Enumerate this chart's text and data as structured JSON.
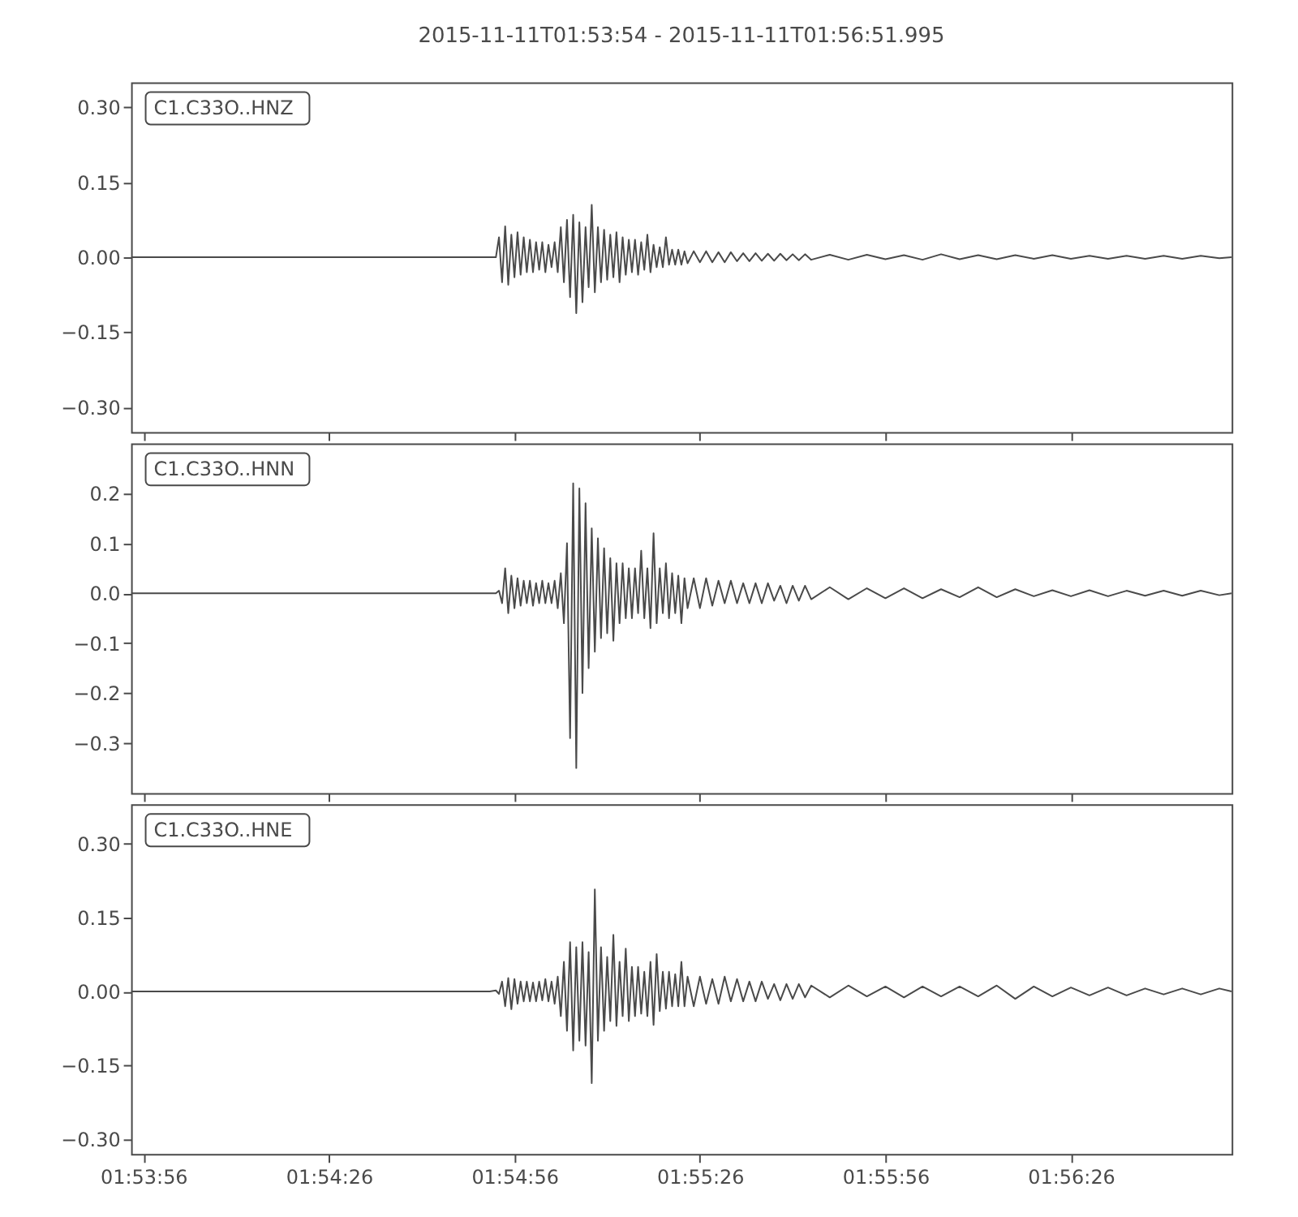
{
  "chart_data": [
    {
      "type": "line",
      "title": "2015-11-11T01:53:54  -  2015-11-11T01:56:51.995",
      "annotations": [
        "C1.C33O..HNZ"
      ],
      "color": "#4a4a4a",
      "tick_labels": "y",
      "xlim": [
        "2015-11-11T01:53:54",
        "2015-11-11T01:56:51.995"
      ],
      "xticks": [
        {
          "value": "2015-11-11T01:53:56",
          "label": null
        },
        {
          "value": "2015-11-11T01:54:26",
          "label": null
        },
        {
          "value": "2015-11-11T01:54:56",
          "label": null
        },
        {
          "value": "2015-11-11T01:55:26",
          "label": null
        },
        {
          "value": "2015-11-11T01:55:56",
          "label": null
        },
        {
          "value": "2015-11-11T01:56:26",
          "label": null
        }
      ],
      "ylim": [
        -0.35,
        0.35
      ],
      "yticks": [
        {
          "value": -0.3,
          "label": "−0.30"
        },
        {
          "value": -0.15,
          "label": "−0.15"
        },
        {
          "value": 0,
          "label": "0.00"
        },
        {
          "value": 0.15,
          "label": "0.15"
        },
        {
          "value": 0.3,
          "label": "0.30"
        }
      ],
      "x": [
        "2015-11-11T01:53:54",
        "2015-11-11T01:54:09",
        "2015-11-11T01:54:24",
        "2015-11-11T01:54:39",
        "2015-11-11T01:54:49",
        "2015-11-11T01:54:52",
        "2015-11-11T01:54:53",
        "2015-11-11T01:54:53.5",
        "2015-11-11T01:54:54",
        "2015-11-11T01:54:54.5",
        "2015-11-11T01:54:55",
        "2015-11-11T01:54:55.5",
        "2015-11-11T01:54:56",
        "2015-11-11T01:54:56.5",
        "2015-11-11T01:54:57",
        "2015-11-11T01:54:57.5",
        "2015-11-11T01:54:58",
        "2015-11-11T01:54:58.5",
        "2015-11-11T01:54:59",
        "2015-11-11T01:54:59.5",
        "2015-11-11T01:55:00",
        "2015-11-11T01:55:00.5",
        "2015-11-11T01:55:01",
        "2015-11-11T01:55:01.5",
        "2015-11-11T01:55:02",
        "2015-11-11T01:55:02.5",
        "2015-11-11T01:55:03",
        "2015-11-11T01:55:03.5",
        "2015-11-11T01:55:04",
        "2015-11-11T01:55:04.5",
        "2015-11-11T01:55:05",
        "2015-11-11T01:55:05.5",
        "2015-11-11T01:55:06",
        "2015-11-11T01:55:06.5",
        "2015-11-11T01:55:07",
        "2015-11-11T01:55:07.5",
        "2015-11-11T01:55:08",
        "2015-11-11T01:55:08.5",
        "2015-11-11T01:55:09",
        "2015-11-11T01:55:09.5",
        "2015-11-11T01:55:10",
        "2015-11-11T01:55:10.5",
        "2015-11-11T01:55:11",
        "2015-11-11T01:55:11.5",
        "2015-11-11T01:55:12",
        "2015-11-11T01:55:12.5",
        "2015-11-11T01:55:13",
        "2015-11-11T01:55:13.5",
        "2015-11-11T01:55:14",
        "2015-11-11T01:55:14.5",
        "2015-11-11T01:55:15",
        "2015-11-11T01:55:15.5",
        "2015-11-11T01:55:16",
        "2015-11-11T01:55:16.5",
        "2015-11-11T01:55:17",
        "2015-11-11T01:55:17.5",
        "2015-11-11T01:55:18",
        "2015-11-11T01:55:18.5",
        "2015-11-11T01:55:19",
        "2015-11-11T01:55:19.5",
        "2015-11-11T01:55:20",
        "2015-11-11T01:55:20.5",
        "2015-11-11T01:55:21",
        "2015-11-11T01:55:21.5",
        "2015-11-11T01:55:22",
        "2015-11-11T01:55:22.5",
        "2015-11-11T01:55:23",
        "2015-11-11T01:55:23.5",
        "2015-11-11T01:55:24",
        "2015-11-11T01:55:25",
        "2015-11-11T01:55:26",
        "2015-11-11T01:55:27",
        "2015-11-11T01:55:28",
        "2015-11-11T01:55:29",
        "2015-11-11T01:55:30",
        "2015-11-11T01:55:31",
        "2015-11-11T01:55:32",
        "2015-11-11T01:55:33",
        "2015-11-11T01:55:34",
        "2015-11-11T01:55:35",
        "2015-11-11T01:55:36",
        "2015-11-11T01:55:37",
        "2015-11-11T01:55:38",
        "2015-11-11T01:55:39",
        "2015-11-11T01:55:40",
        "2015-11-11T01:55:41",
        "2015-11-11T01:55:42",
        "2015-11-11T01:55:43",
        "2015-11-11T01:55:44",
        "2015-11-11T01:55:47",
        "2015-11-11T01:55:50",
        "2015-11-11T01:55:53",
        "2015-11-11T01:55:56",
        "2015-11-11T01:55:59",
        "2015-11-11T01:56:02",
        "2015-11-11T01:56:05",
        "2015-11-11T01:56:08",
        "2015-11-11T01:56:11",
        "2015-11-11T01:56:14",
        "2015-11-11T01:56:17",
        "2015-11-11T01:56:20",
        "2015-11-11T01:56:23",
        "2015-11-11T01:56:26",
        "2015-11-11T01:56:29",
        "2015-11-11T01:56:32",
        "2015-11-11T01:56:35",
        "2015-11-11T01:56:38",
        "2015-11-11T01:56:41",
        "2015-11-11T01:56:44",
        "2015-11-11T01:56:47",
        "2015-11-11T01:56:50",
        "2015-11-11T01:56:51.995"
      ],
      "values": [
        0,
        0,
        0,
        0,
        0,
        0,
        0.0,
        0.04,
        -0.05,
        0.062,
        -0.055,
        0.045,
        -0.04,
        0.05,
        -0.035,
        0.04,
        -0.03,
        0.035,
        -0.03,
        0.03,
        -0.025,
        0.03,
        -0.03,
        0.025,
        -0.02,
        0.03,
        -0.03,
        0.06,
        -0.05,
        0.075,
        -0.08,
        0.085,
        -0.112,
        0.07,
        -0.09,
        0.06,
        -0.06,
        0.105,
        -0.07,
        0.06,
        -0.05,
        0.055,
        -0.045,
        0.045,
        -0.04,
        0.05,
        -0.05,
        0.04,
        -0.035,
        0.035,
        -0.03,
        0.035,
        -0.035,
        0.03,
        -0.025,
        0.045,
        -0.03,
        0.025,
        -0.02,
        0.02,
        -0.02,
        0.04,
        -0.015,
        0.015,
        -0.015,
        0.015,
        -0.015,
        0.012,
        -0.012,
        0.012,
        -0.01,
        0.012,
        -0.01,
        0.01,
        -0.01,
        0.01,
        -0.008,
        0.008,
        -0.008,
        0.008,
        -0.007,
        0.007,
        -0.007,
        0.007,
        -0.006,
        0.006,
        -0.006,
        0.006,
        -0.005,
        0.005,
        -0.005,
        0.005,
        -0.004,
        0.004,
        -0.005,
        0.006,
        -0.004,
        0.004,
        -0.004,
        0.004,
        -0.003,
        0.004,
        -0.003,
        0.003,
        -0.003,
        0.003,
        -0.003,
        0.003,
        -0.003,
        0.003,
        -0.002,
        0
      ]
    },
    {
      "type": "line",
      "annotations": [
        "C1.C33O..HNN"
      ],
      "color": "#4a4a4a",
      "tick_labels": "y",
      "xlim": [
        "2015-11-11T01:53:54",
        "2015-11-11T01:56:51.995"
      ],
      "xticks": [
        {
          "value": "2015-11-11T01:53:56",
          "label": null
        },
        {
          "value": "2015-11-11T01:54:26",
          "label": null
        },
        {
          "value": "2015-11-11T01:54:56",
          "label": null
        },
        {
          "value": "2015-11-11T01:55:26",
          "label": null
        },
        {
          "value": "2015-11-11T01:55:56",
          "label": null
        },
        {
          "value": "2015-11-11T01:56:26",
          "label": null
        }
      ],
      "ylim": [
        -0.4,
        0.3
      ],
      "yticks": [
        {
          "value": -0.3,
          "label": "−0.3"
        },
        {
          "value": -0.2,
          "label": "−0.2"
        },
        {
          "value": -0.1,
          "label": "−0.1"
        },
        {
          "value": 0,
          "label": "0.0"
        },
        {
          "value": 0.1,
          "label": "0.1"
        },
        {
          "value": 0.2,
          "label": "0.2"
        }
      ],
      "x": [
        "2015-11-11T01:53:54",
        "2015-11-11T01:54:09",
        "2015-11-11T01:54:24",
        "2015-11-11T01:54:39",
        "2015-11-11T01:54:49",
        "2015-11-11T01:54:52",
        "2015-11-11T01:54:53",
        "2015-11-11T01:54:53.5",
        "2015-11-11T01:54:54",
        "2015-11-11T01:54:54.5",
        "2015-11-11T01:54:55",
        "2015-11-11T01:54:55.5",
        "2015-11-11T01:54:56",
        "2015-11-11T01:54:56.5",
        "2015-11-11T01:54:57",
        "2015-11-11T01:54:57.5",
        "2015-11-11T01:54:58",
        "2015-11-11T01:54:58.5",
        "2015-11-11T01:54:59",
        "2015-11-11T01:54:59.5",
        "2015-11-11T01:55:00",
        "2015-11-11T01:55:00.5",
        "2015-11-11T01:55:01",
        "2015-11-11T01:55:01.5",
        "2015-11-11T01:55:02",
        "2015-11-11T01:55:02.5",
        "2015-11-11T01:55:03",
        "2015-11-11T01:55:03.5",
        "2015-11-11T01:55:04",
        "2015-11-11T01:55:04.5",
        "2015-11-11T01:55:05",
        "2015-11-11T01:55:05.5",
        "2015-11-11T01:55:06",
        "2015-11-11T01:55:06.5",
        "2015-11-11T01:55:07",
        "2015-11-11T01:55:07.5",
        "2015-11-11T01:55:08",
        "2015-11-11T01:55:08.5",
        "2015-11-11T01:55:09",
        "2015-11-11T01:55:09.5",
        "2015-11-11T01:55:10",
        "2015-11-11T01:55:10.5",
        "2015-11-11T01:55:11",
        "2015-11-11T01:55:11.5",
        "2015-11-11T01:55:12",
        "2015-11-11T01:55:12.5",
        "2015-11-11T01:55:13",
        "2015-11-11T01:55:13.5",
        "2015-11-11T01:55:14",
        "2015-11-11T01:55:14.5",
        "2015-11-11T01:55:15",
        "2015-11-11T01:55:15.5",
        "2015-11-11T01:55:16",
        "2015-11-11T01:55:16.5",
        "2015-11-11T01:55:17",
        "2015-11-11T01:55:17.5",
        "2015-11-11T01:55:18",
        "2015-11-11T01:55:18.5",
        "2015-11-11T01:55:19",
        "2015-11-11T01:55:19.5",
        "2015-11-11T01:55:20",
        "2015-11-11T01:55:20.5",
        "2015-11-11T01:55:21",
        "2015-11-11T01:55:21.5",
        "2015-11-11T01:55:22",
        "2015-11-11T01:55:22.5",
        "2015-11-11T01:55:23",
        "2015-11-11T01:55:23.5",
        "2015-11-11T01:55:24",
        "2015-11-11T01:55:25",
        "2015-11-11T01:55:26",
        "2015-11-11T01:55:27",
        "2015-11-11T01:55:28",
        "2015-11-11T01:55:29",
        "2015-11-11T01:55:30",
        "2015-11-11T01:55:31",
        "2015-11-11T01:55:32",
        "2015-11-11T01:55:33",
        "2015-11-11T01:55:34",
        "2015-11-11T01:55:35",
        "2015-11-11T01:55:36",
        "2015-11-11T01:55:37",
        "2015-11-11T01:55:38",
        "2015-11-11T01:55:39",
        "2015-11-11T01:55:40",
        "2015-11-11T01:55:41",
        "2015-11-11T01:55:42",
        "2015-11-11T01:55:43",
        "2015-11-11T01:55:44",
        "2015-11-11T01:55:47",
        "2015-11-11T01:55:50",
        "2015-11-11T01:55:53",
        "2015-11-11T01:55:56",
        "2015-11-11T01:55:59",
        "2015-11-11T01:56:02",
        "2015-11-11T01:56:05",
        "2015-11-11T01:56:08",
        "2015-11-11T01:56:11",
        "2015-11-11T01:56:14",
        "2015-11-11T01:56:17",
        "2015-11-11T01:56:20",
        "2015-11-11T01:56:23",
        "2015-11-11T01:56:26",
        "2015-11-11T01:56:29",
        "2015-11-11T01:56:32",
        "2015-11-11T01:56:35",
        "2015-11-11T01:56:38",
        "2015-11-11T01:56:41",
        "2015-11-11T01:56:44",
        "2015-11-11T01:56:47",
        "2015-11-11T01:56:50",
        "2015-11-11T01:56:51.995"
      ],
      "values": [
        0,
        0,
        0,
        0,
        0,
        0,
        0.0,
        0.005,
        -0.02,
        0.05,
        -0.04,
        0.035,
        -0.03,
        0.03,
        -0.025,
        0.025,
        -0.02,
        0.025,
        -0.025,
        0.02,
        -0.02,
        0.025,
        -0.02,
        0.02,
        -0.02,
        0.025,
        -0.03,
        0.04,
        -0.06,
        0.1,
        -0.29,
        0.22,
        -0.35,
        0.21,
        -0.2,
        0.18,
        -0.15,
        0.13,
        -0.117,
        0.11,
        -0.09,
        0.09,
        -0.08,
        0.07,
        -0.095,
        0.06,
        -0.06,
        0.06,
        -0.05,
        0.05,
        -0.05,
        0.05,
        -0.04,
        0.085,
        -0.05,
        0.05,
        -0.07,
        0.12,
        -0.06,
        0.05,
        -0.04,
        0.06,
        -0.05,
        0.04,
        -0.04,
        0.035,
        -0.06,
        0.03,
        -0.03,
        0.03,
        -0.03,
        0.03,
        -0.025,
        0.025,
        -0.02,
        0.025,
        -0.02,
        0.02,
        -0.02,
        0.02,
        -0.02,
        0.02,
        -0.015,
        0.015,
        -0.02,
        0.015,
        -0.015,
        0.015,
        -0.012,
        0.012,
        -0.012,
        0.01,
        -0.01,
        0.01,
        -0.01,
        0.008,
        -0.008,
        0.012,
        -0.008,
        0.008,
        -0.006,
        0.006,
        -0.006,
        0.006,
        -0.006,
        0.005,
        -0.005,
        0.005,
        -0.005,
        0.005,
        -0.004,
        0
      ]
    },
    {
      "type": "line",
      "annotations": [
        "C1.C33O..HNE"
      ],
      "color": "#4a4a4a",
      "xlim": [
        "2015-11-11T01:53:54",
        "2015-11-11T01:56:51.995"
      ],
      "xticks": [
        {
          "value": "2015-11-11T01:53:56",
          "label": "01:53:56"
        },
        {
          "value": "2015-11-11T01:54:26",
          "label": "01:54:26"
        },
        {
          "value": "2015-11-11T01:54:56",
          "label": "01:54:56"
        },
        {
          "value": "2015-11-11T01:55:26",
          "label": "01:55:26"
        },
        {
          "value": "2015-11-11T01:55:56",
          "label": "01:55:56"
        },
        {
          "value": "2015-11-11T01:56:26",
          "label": "01:56:26"
        }
      ],
      "ylim": [
        -0.33,
        0.38
      ],
      "yticks": [
        {
          "value": -0.3,
          "label": "−0.30"
        },
        {
          "value": -0.15,
          "label": "−0.15"
        },
        {
          "value": 0,
          "label": "0.00"
        },
        {
          "value": 0.15,
          "label": "0.15"
        },
        {
          "value": 0.3,
          "label": "0.30"
        }
      ],
      "x": [
        "2015-11-11T01:53:54",
        "2015-11-11T01:54:09",
        "2015-11-11T01:54:24",
        "2015-11-11T01:54:39",
        "2015-11-11T01:54:49",
        "2015-11-11T01:54:52",
        "2015-11-11T01:54:53",
        "2015-11-11T01:54:53.5",
        "2015-11-11T01:54:54",
        "2015-11-11T01:54:54.5",
        "2015-11-11T01:54:55",
        "2015-11-11T01:54:55.5",
        "2015-11-11T01:54:56",
        "2015-11-11T01:54:56.5",
        "2015-11-11T01:54:57",
        "2015-11-11T01:54:57.5",
        "2015-11-11T01:54:58",
        "2015-11-11T01:54:58.5",
        "2015-11-11T01:54:59",
        "2015-11-11T01:54:59.5",
        "2015-11-11T01:55:00",
        "2015-11-11T01:55:00.5",
        "2015-11-11T01:55:01",
        "2015-11-11T01:55:01.5",
        "2015-11-11T01:55:02",
        "2015-11-11T01:55:02.5",
        "2015-11-11T01:55:03",
        "2015-11-11T01:55:03.5",
        "2015-11-11T01:55:04",
        "2015-11-11T01:55:04.5",
        "2015-11-11T01:55:05",
        "2015-11-11T01:55:05.5",
        "2015-11-11T01:55:06",
        "2015-11-11T01:55:06.5",
        "2015-11-11T01:55:07",
        "2015-11-11T01:55:07.5",
        "2015-11-11T01:55:08",
        "2015-11-11T01:55:08.5",
        "2015-11-11T01:55:09",
        "2015-11-11T01:55:09.5",
        "2015-11-11T01:55:10",
        "2015-11-11T01:55:10.5",
        "2015-11-11T01:55:11",
        "2015-11-11T01:55:11.5",
        "2015-11-11T01:55:12",
        "2015-11-11T01:55:12.5",
        "2015-11-11T01:55:13",
        "2015-11-11T01:55:13.5",
        "2015-11-11T01:55:14",
        "2015-11-11T01:55:14.5",
        "2015-11-11T01:55:15",
        "2015-11-11T01:55:15.5",
        "2015-11-11T01:55:16",
        "2015-11-11T01:55:16.5",
        "2015-11-11T01:55:17",
        "2015-11-11T01:55:17.5",
        "2015-11-11T01:55:18",
        "2015-11-11T01:55:18.5",
        "2015-11-11T01:55:19",
        "2015-11-11T01:55:19.5",
        "2015-11-11T01:55:20",
        "2015-11-11T01:55:20.5",
        "2015-11-11T01:55:21",
        "2015-11-11T01:55:21.5",
        "2015-11-11T01:55:22",
        "2015-11-11T01:55:22.5",
        "2015-11-11T01:55:23",
        "2015-11-11T01:55:23.5",
        "2015-11-11T01:55:24",
        "2015-11-11T01:55:25",
        "2015-11-11T01:55:26",
        "2015-11-11T01:55:27",
        "2015-11-11T01:55:28",
        "2015-11-11T01:55:29",
        "2015-11-11T01:55:30",
        "2015-11-11T01:55:31",
        "2015-11-11T01:55:32",
        "2015-11-11T01:55:33",
        "2015-11-11T01:55:34",
        "2015-11-11T01:55:35",
        "2015-11-11T01:55:36",
        "2015-11-11T01:55:37",
        "2015-11-11T01:55:38",
        "2015-11-11T01:55:39",
        "2015-11-11T01:55:40",
        "2015-11-11T01:55:41",
        "2015-11-11T01:55:42",
        "2015-11-11T01:55:43",
        "2015-11-11T01:55:44",
        "2015-11-11T01:55:47",
        "2015-11-11T01:55:50",
        "2015-11-11T01:55:53",
        "2015-11-11T01:55:56",
        "2015-11-11T01:55:59",
        "2015-11-11T01:56:02",
        "2015-11-11T01:56:05",
        "2015-11-11T01:56:08",
        "2015-11-11T01:56:11",
        "2015-11-11T01:56:14",
        "2015-11-11T01:56:17",
        "2015-11-11T01:56:20",
        "2015-11-11T01:56:23",
        "2015-11-11T01:56:26",
        "2015-11-11T01:56:29",
        "2015-11-11T01:56:32",
        "2015-11-11T01:56:35",
        "2015-11-11T01:56:38",
        "2015-11-11T01:56:41",
        "2015-11-11T01:56:44",
        "2015-11-11T01:56:47",
        "2015-11-11T01:56:50",
        "2015-11-11T01:56:51.995"
      ],
      "values": [
        0,
        0,
        0,
        0,
        0,
        0,
        0.002,
        -0.005,
        0.02,
        -0.03,
        0.027,
        -0.036,
        0.025,
        -0.025,
        0.02,
        -0.02,
        0.02,
        -0.02,
        0.018,
        -0.02,
        0.02,
        -0.018,
        0.025,
        -0.02,
        0.02,
        -0.025,
        0.03,
        -0.05,
        0.06,
        -0.08,
        0.1,
        -0.12,
        0.09,
        -0.1,
        0.1,
        -0.11,
        0.08,
        -0.186,
        0.207,
        -0.1,
        0.09,
        -0.08,
        0.07,
        -0.06,
        0.115,
        -0.07,
        0.06,
        -0.05,
        0.087,
        -0.06,
        0.05,
        -0.05,
        0.05,
        -0.045,
        0.04,
        -0.05,
        0.06,
        -0.068,
        0.076,
        -0.04,
        0.04,
        -0.035,
        0.04,
        -0.03,
        0.035,
        -0.03,
        0.06,
        -0.03,
        0.03,
        -0.03,
        0.03,
        -0.025,
        0.025,
        -0.025,
        0.03,
        -0.02,
        0.025,
        -0.02,
        0.02,
        -0.02,
        0.02,
        -0.015,
        0.015,
        -0.018,
        0.015,
        -0.015,
        0.015,
        -0.012,
        0.012,
        -0.012,
        0.012,
        -0.01,
        0.01,
        -0.012,
        0.01,
        -0.01,
        0.01,
        -0.01,
        0.012,
        -0.015,
        0.01,
        -0.01,
        0.008,
        -0.008,
        0.008,
        -0.008,
        0.006,
        -0.006,
        0.006,
        -0.006,
        0.006,
        0
      ]
    }
  ]
}
